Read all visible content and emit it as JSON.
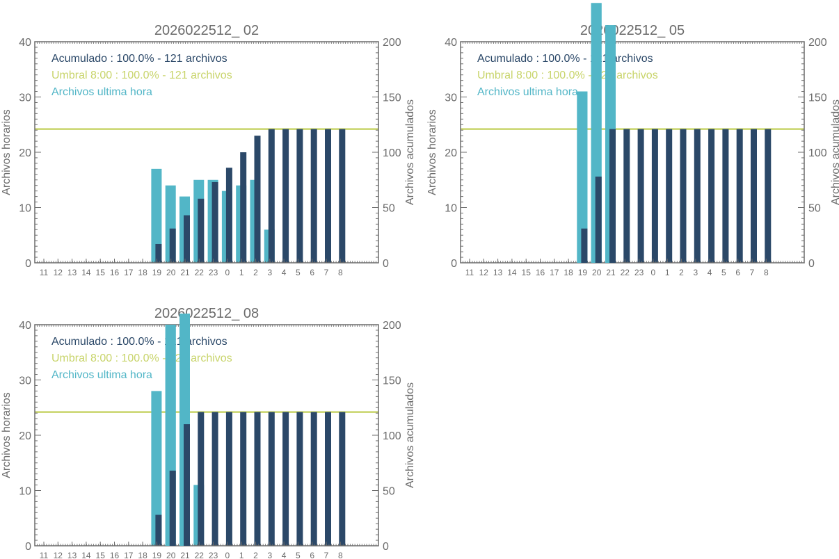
{
  "colors": {
    "accumulated": "#2b4868",
    "hourly": "#52b6c7",
    "threshold": "#c8d46a",
    "axis": "#6b6b6b"
  },
  "chart_data": [
    {
      "type": "bar",
      "title": "2026022512_ 02",
      "categories": [
        "11",
        "12",
        "13",
        "14",
        "15",
        "16",
        "17",
        "18",
        "19",
        "20",
        "21",
        "22",
        "23",
        "0",
        "1",
        "2",
        "3",
        "4",
        "5",
        "6",
        "7",
        "8"
      ],
      "ylabel": "Archivos horarios",
      "y2label": "Archivos acumulados",
      "ylim": [
        0,
        40
      ],
      "y2lim": [
        0,
        200
      ],
      "yticks": [
        "0",
        "10",
        "20",
        "30",
        "40"
      ],
      "y2ticks": [
        "0",
        "50",
        "100",
        "150",
        "200"
      ],
      "legend": {
        "accumulated": "Acumulado : 100.0% - 121 archivos",
        "threshold": "Umbral 8:00 : 100.0% - 121 archivos",
        "hourly": "Archivos ultima hora"
      },
      "threshold_value": 121,
      "series": [
        {
          "name": "Archivos ultima hora",
          "axis": "left",
          "values": [
            0,
            0,
            0,
            0,
            0,
            0,
            0,
            0,
            17,
            14,
            12,
            15,
            15,
            13,
            14,
            15,
            6,
            0,
            0,
            0,
            0,
            0
          ]
        },
        {
          "name": "Acumulado",
          "axis": "right",
          "values": [
            0,
            0,
            0,
            0,
            0,
            0,
            0,
            0,
            17,
            31,
            43,
            58,
            73,
            86,
            100,
            115,
            121,
            121,
            121,
            121,
            121,
            121
          ]
        }
      ]
    },
    {
      "type": "bar",
      "title": "2026022512_ 05",
      "categories": [
        "11",
        "12",
        "13",
        "14",
        "15",
        "16",
        "17",
        "18",
        "19",
        "20",
        "21",
        "22",
        "23",
        "0",
        "1",
        "2",
        "3",
        "4",
        "5",
        "6",
        "7",
        "8"
      ],
      "ylabel": "Archivos horarios",
      "y2label": "Archivos acumulados",
      "ylim": [
        0,
        40
      ],
      "y2lim": [
        0,
        200
      ],
      "yticks": [
        "0",
        "10",
        "20",
        "30",
        "40"
      ],
      "y2ticks": [
        "0",
        "50",
        "100",
        "150",
        "200"
      ],
      "legend": {
        "accumulated": "Acumulado : 100.0% - 121 archivos",
        "threshold": "Umbral 8:00 : 100.0% - 121 archivos",
        "hourly": "Archivos ultima hora"
      },
      "threshold_value": 121,
      "series": [
        {
          "name": "Archivos ultima hora",
          "axis": "left",
          "values": [
            0,
            0,
            0,
            0,
            0,
            0,
            0,
            0,
            31,
            47,
            43,
            0,
            0,
            0,
            0,
            0,
            0,
            0,
            0,
            0,
            0,
            0
          ]
        },
        {
          "name": "Acumulado",
          "axis": "right",
          "values": [
            0,
            0,
            0,
            0,
            0,
            0,
            0,
            0,
            31,
            78,
            121,
            121,
            121,
            121,
            121,
            121,
            121,
            121,
            121,
            121,
            121,
            121
          ]
        }
      ]
    },
    {
      "type": "bar",
      "title": "2026022512_ 08",
      "categories": [
        "11",
        "12",
        "13",
        "14",
        "15",
        "16",
        "17",
        "18",
        "19",
        "20",
        "21",
        "22",
        "23",
        "0",
        "1",
        "2",
        "3",
        "4",
        "5",
        "6",
        "7",
        "8"
      ],
      "ylabel": "Archivos horarios",
      "y2label": "Archivos acumulados",
      "ylim": [
        0,
        40
      ],
      "y2lim": [
        0,
        200
      ],
      "yticks": [
        "0",
        "10",
        "20",
        "30",
        "40"
      ],
      "y2ticks": [
        "0",
        "50",
        "100",
        "150",
        "200"
      ],
      "legend": {
        "accumulated": "Acumulado : 100.0% - 121 archivos",
        "threshold": "Umbral 8:00 : 100.0% - 121 archivos",
        "hourly": "Archivos ultima hora"
      },
      "threshold_value": 121,
      "series": [
        {
          "name": "Archivos ultima hora",
          "axis": "left",
          "values": [
            0,
            0,
            0,
            0,
            0,
            0,
            0,
            0,
            28,
            40,
            42,
            11,
            0,
            0,
            0,
            0,
            0,
            0,
            0,
            0,
            0,
            0
          ]
        },
        {
          "name": "Acumulado",
          "axis": "right",
          "values": [
            0,
            0,
            0,
            0,
            0,
            0,
            0,
            0,
            28,
            68,
            110,
            121,
            121,
            121,
            121,
            121,
            121,
            121,
            121,
            121,
            121,
            121
          ]
        }
      ]
    }
  ]
}
